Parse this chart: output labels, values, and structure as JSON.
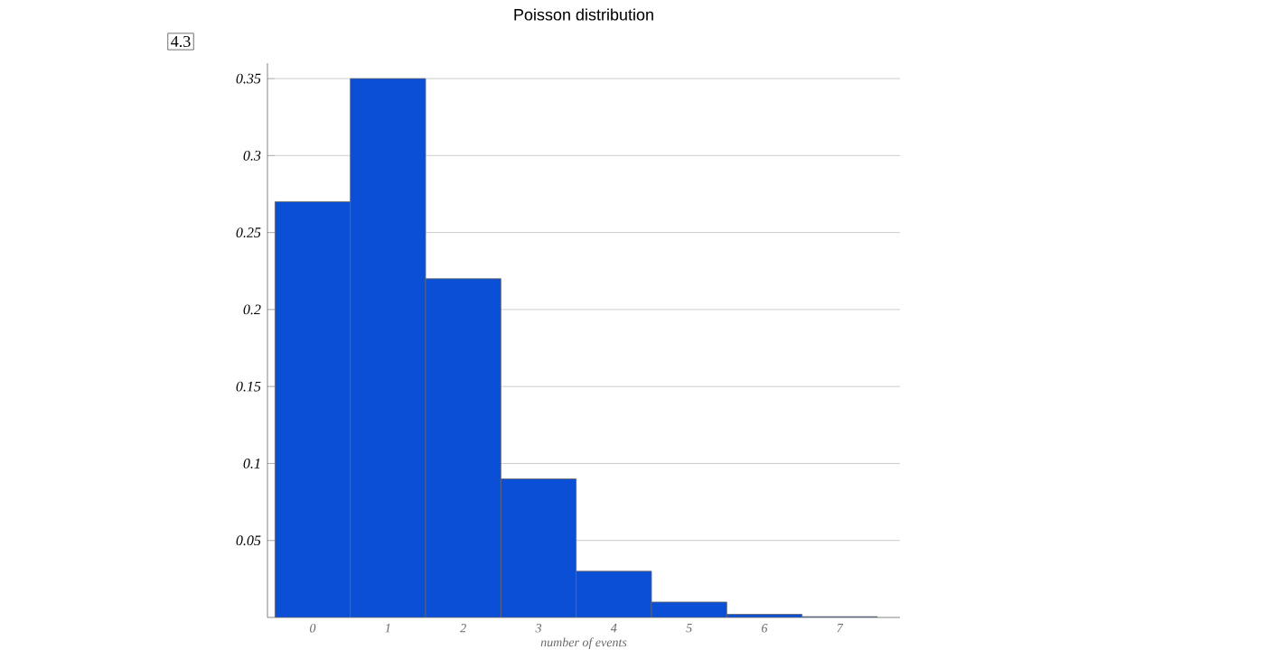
{
  "chart_data": {
    "type": "bar",
    "title": "Poisson distribution",
    "xlabel": "number of events",
    "categories": [
      "0",
      "1",
      "2",
      "3",
      "4",
      "5",
      "6",
      "7"
    ],
    "values": [
      0.27,
      0.35,
      0.22,
      0.09,
      0.03,
      0.01,
      0.002,
      0.0005
    ],
    "color": "#0b4fd6",
    "ylim": [
      0,
      0.36
    ],
    "yticks": [
      0.05,
      0.1,
      0.15,
      0.2,
      0.25,
      0.3,
      0.35
    ],
    "grid": "y",
    "annotations": [
      "4.3"
    ]
  }
}
